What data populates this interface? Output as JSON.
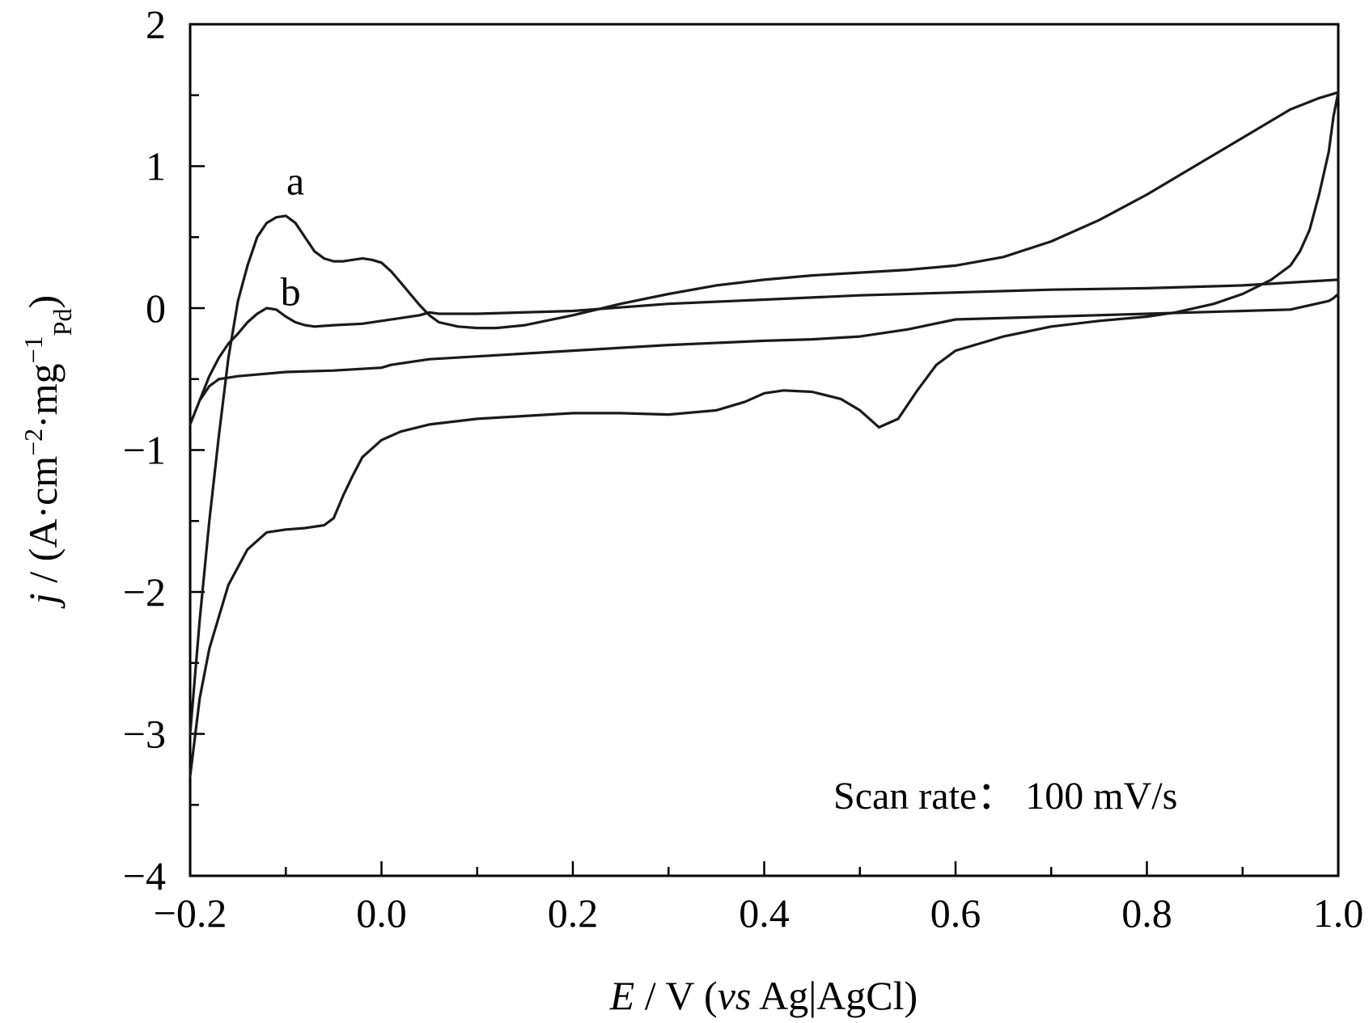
{
  "chart_data": {
    "type": "line",
    "title": "",
    "xlabel": {
      "italic": "E",
      "rest": " / V (",
      "vs": "vs",
      "ref": " Ag|AgCl)"
    },
    "ylabel": {
      "italic": "j",
      "rest": " / (A·cm",
      "sup1": "−2",
      "mid": "·mg",
      "sup2": "−1",
      "sub": "Pd",
      "end": ")"
    },
    "xlim": [
      -0.2,
      1.0
    ],
    "ylim": [
      -4,
      2
    ],
    "x_ticks": [
      -0.2,
      0.0,
      0.2,
      0.4,
      0.6,
      0.8,
      1.0
    ],
    "x_tick_labels": [
      "−0.2",
      "0.0",
      "0.2",
      "0.4",
      "0.6",
      "0.8",
      "1.0"
    ],
    "y_ticks": [
      -4,
      -3,
      -2,
      -1,
      0,
      1,
      2
    ],
    "y_tick_labels": [
      "−4",
      "−3",
      "−2",
      "−1",
      "0",
      "1",
      "2"
    ],
    "x_minor_step": 0.1,
    "y_minor_step": 0.5,
    "grid": false,
    "annotation": "Scan rate：  100 mV/s",
    "series": [
      {
        "name": "a",
        "label_at": [
          -0.09,
          0.8
        ],
        "x": [
          -0.2,
          -0.195,
          -0.19,
          -0.18,
          -0.17,
          -0.16,
          -0.15,
          -0.14,
          -0.13,
          -0.12,
          -0.11,
          -0.1,
          -0.09,
          -0.08,
          -0.07,
          -0.06,
          -0.05,
          -0.04,
          -0.03,
          -0.02,
          -0.01,
          0.0,
          0.01,
          0.02,
          0.03,
          0.04,
          0.05,
          0.06,
          0.08,
          0.1,
          0.12,
          0.15,
          0.2,
          0.25,
          0.3,
          0.35,
          0.4,
          0.45,
          0.5,
          0.55,
          0.6,
          0.65,
          0.7,
          0.75,
          0.8,
          0.85,
          0.9,
          0.95,
          0.98,
          1.0,
          0.995,
          0.99,
          0.98,
          0.97,
          0.96,
          0.95,
          0.93,
          0.9,
          0.87,
          0.83,
          0.8,
          0.75,
          0.7,
          0.65,
          0.6,
          0.58,
          0.56,
          0.54,
          0.52,
          0.5,
          0.48,
          0.45,
          0.42,
          0.4,
          0.38,
          0.35,
          0.3,
          0.25,
          0.2,
          0.15,
          0.1,
          0.05,
          0.02,
          0.0,
          -0.02,
          -0.03,
          -0.04,
          -0.05,
          -0.06,
          -0.08,
          -0.1,
          -0.12,
          -0.14,
          -0.16,
          -0.18,
          -0.19,
          -0.2
        ],
        "y": [
          -3.0,
          -2.6,
          -2.2,
          -1.5,
          -0.9,
          -0.35,
          0.05,
          0.3,
          0.5,
          0.6,
          0.64,
          0.65,
          0.6,
          0.5,
          0.4,
          0.35,
          0.33,
          0.33,
          0.34,
          0.35,
          0.34,
          0.32,
          0.26,
          0.18,
          0.1,
          0.02,
          -0.05,
          -0.1,
          -0.13,
          -0.14,
          -0.14,
          -0.12,
          -0.05,
          0.03,
          0.1,
          0.16,
          0.2,
          0.23,
          0.25,
          0.27,
          0.3,
          0.36,
          0.47,
          0.62,
          0.8,
          1.0,
          1.2,
          1.4,
          1.48,
          1.52,
          1.35,
          1.1,
          0.8,
          0.55,
          0.4,
          0.3,
          0.2,
          0.1,
          0.03,
          -0.03,
          -0.06,
          -0.09,
          -0.13,
          -0.2,
          -0.3,
          -0.4,
          -0.58,
          -0.78,
          -0.84,
          -0.72,
          -0.64,
          -0.59,
          -0.58,
          -0.6,
          -0.66,
          -0.72,
          -0.75,
          -0.74,
          -0.74,
          -0.76,
          -0.78,
          -0.82,
          -0.87,
          -0.93,
          -1.05,
          -1.18,
          -1.32,
          -1.48,
          -1.53,
          -1.55,
          -1.56,
          -1.58,
          -1.7,
          -1.95,
          -2.4,
          -2.75,
          -3.3
        ]
      },
      {
        "name": "b",
        "label_at": [
          -0.095,
          0.02
        ],
        "x": [
          -0.2,
          -0.19,
          -0.18,
          -0.17,
          -0.16,
          -0.15,
          -0.14,
          -0.13,
          -0.12,
          -0.11,
          -0.1,
          -0.09,
          -0.08,
          -0.07,
          -0.05,
          -0.02,
          0.0,
          0.02,
          0.04,
          0.05,
          0.06,
          0.1,
          0.2,
          0.3,
          0.4,
          0.5,
          0.6,
          0.7,
          0.8,
          0.9,
          0.95,
          1.0,
          1.0,
          0.995,
          0.99,
          0.95,
          0.9,
          0.8,
          0.7,
          0.6,
          0.55,
          0.5,
          0.45,
          0.4,
          0.3,
          0.2,
          0.1,
          0.05,
          0.01,
          0.0,
          -0.05,
          -0.1,
          -0.15,
          -0.17,
          -0.18,
          -0.19,
          -0.2
        ],
        "y": [
          -0.82,
          -0.65,
          -0.48,
          -0.35,
          -0.25,
          -0.18,
          -0.1,
          -0.04,
          0.0,
          -0.01,
          -0.06,
          -0.1,
          -0.12,
          -0.13,
          -0.12,
          -0.11,
          -0.09,
          -0.07,
          -0.05,
          -0.03,
          -0.04,
          -0.04,
          -0.02,
          0.03,
          0.06,
          0.09,
          0.11,
          0.13,
          0.14,
          0.16,
          0.18,
          0.2,
          0.1,
          0.07,
          0.05,
          -0.01,
          -0.02,
          -0.04,
          -0.06,
          -0.08,
          -0.15,
          -0.2,
          -0.22,
          -0.23,
          -0.26,
          -0.3,
          -0.34,
          -0.36,
          -0.4,
          -0.42,
          -0.44,
          -0.45,
          -0.48,
          -0.5,
          -0.55,
          -0.65,
          -0.82
        ]
      }
    ]
  }
}
